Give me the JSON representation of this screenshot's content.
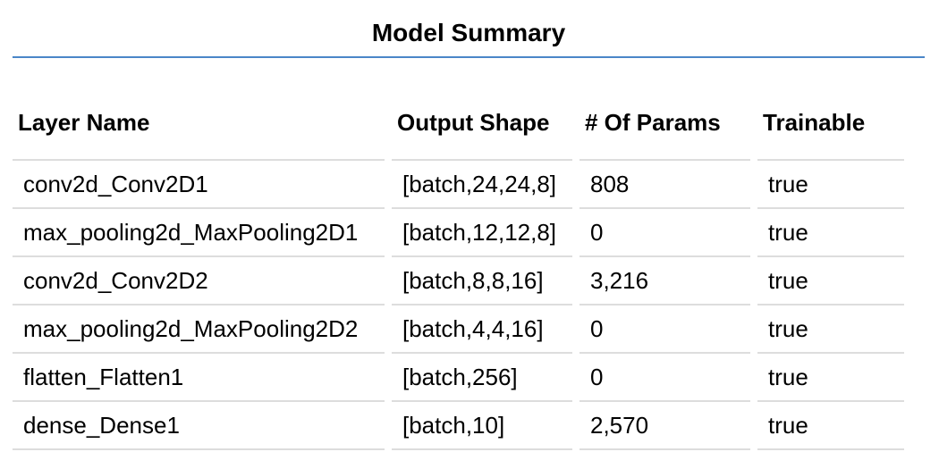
{
  "title": "Model Summary",
  "table": {
    "headers": [
      "Layer Name",
      "Output Shape",
      "# Of Params",
      "Trainable"
    ],
    "rows": [
      [
        "conv2d_Conv2D1",
        "[batch,24,24,8]",
        "808",
        "true"
      ],
      [
        "max_pooling2d_MaxPooling2D1",
        "[batch,12,12,8]",
        "0",
        "true"
      ],
      [
        "conv2d_Conv2D2",
        "[batch,8,8,16]",
        "3,216",
        "true"
      ],
      [
        "max_pooling2d_MaxPooling2D2",
        "[batch,4,4,16]",
        "0",
        "true"
      ],
      [
        "flatten_Flatten1",
        "[batch,256]",
        "0",
        "true"
      ],
      [
        "dense_Dense1",
        "[batch,10]",
        "2,570",
        "true"
      ]
    ]
  },
  "colors": {
    "title_underline": "#4a86c8",
    "row_separator": "#dddddd"
  }
}
